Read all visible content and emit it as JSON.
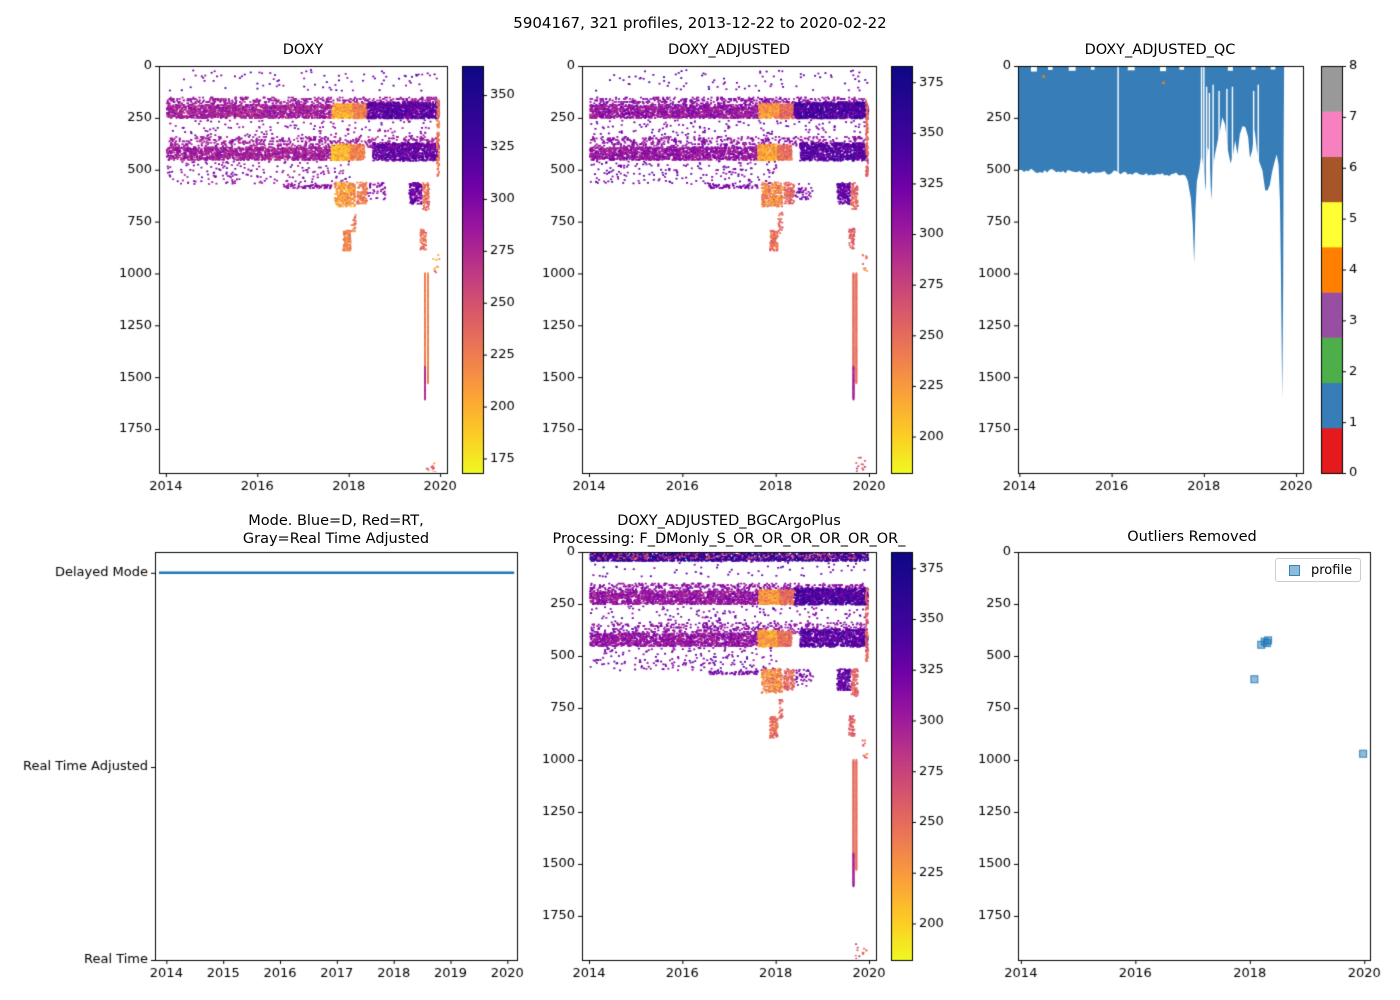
{
  "chart_data": {
    "type": "scatter",
    "suptitle": "5904167, 321 profiles, 2013-12-22 to 2020-02-22",
    "plasma_r_stops": [
      [
        0,
        "#f0f921"
      ],
      [
        0.1,
        "#fdca26"
      ],
      [
        0.2,
        "#fb9f3a"
      ],
      [
        0.3,
        "#ed7953"
      ],
      [
        0.4,
        "#d8576b"
      ],
      [
        0.5,
        "#bd3786"
      ],
      [
        0.6,
        "#9c179e"
      ],
      [
        0.7,
        "#7201a8"
      ],
      [
        0.8,
        "#46039f"
      ],
      [
        1,
        "#0d0887"
      ]
    ],
    "qc_palette": [
      "#e41a1c",
      "#377eb8",
      "#4daf4a",
      "#984ea3",
      "#ff7f00",
      "#ffff33",
      "#a65628",
      "#f781bf",
      "#999999"
    ],
    "shared_groups": {
      "doxy_pattern": [
        {
          "s": "cloud",
          "x": [
            2014.0,
            2019.95
          ],
          "d": [
            15,
            115
          ],
          "n": 85,
          "v": [
            285,
            330
          ]
        },
        {
          "s": "band",
          "x": [
            2014.0,
            2019.9
          ],
          "d": [
            148,
            188
          ],
          "n": 560,
          "v": [
            272,
            300
          ],
          "q": 7
        },
        {
          "s": "band",
          "x": [
            2014.0,
            2017.62
          ],
          "d": [
            186,
            248
          ],
          "n": 1500,
          "v": [
            262,
            300
          ],
          "q": 4
        },
        {
          "s": "band",
          "x": [
            2017.62,
            2018.07
          ],
          "d": [
            178,
            248
          ],
          "n": 420,
          "v": [
            178,
            226
          ],
          "q": 4
        },
        {
          "s": "band",
          "x": [
            2018.07,
            2018.38
          ],
          "d": [
            180,
            248
          ],
          "n": 260,
          "v": [
            205,
            245
          ],
          "q": 4
        },
        {
          "s": "band",
          "x": [
            2018.38,
            2019.96
          ],
          "d": [
            172,
            250
          ],
          "n": 1150,
          "v": [
            290,
            340
          ],
          "q": 4
        },
        {
          "s": "cloud",
          "x": [
            2014.0,
            2019.9
          ],
          "d": [
            255,
            335
          ],
          "n": 130,
          "v": [
            280,
            315
          ]
        },
        {
          "s": "band",
          "x": [
            2014.0,
            2019.9
          ],
          "d": [
            338,
            388
          ],
          "n": 500,
          "v": [
            272,
            300
          ],
          "q": 7
        },
        {
          "s": "band",
          "x": [
            2014.0,
            2017.6
          ],
          "d": [
            388,
            450
          ],
          "n": 1400,
          "v": [
            264,
            300
          ],
          "q": 4
        },
        {
          "s": "band",
          "x": [
            2017.6,
            2018.02
          ],
          "d": [
            374,
            452
          ],
          "n": 380,
          "v": [
            175,
            218
          ],
          "q": 4
        },
        {
          "s": "band",
          "x": [
            2018.02,
            2018.32
          ],
          "d": [
            376,
            450
          ],
          "n": 230,
          "v": [
            204,
            242
          ],
          "q": 4
        },
        {
          "s": "band",
          "x": [
            2018.5,
            2019.95
          ],
          "d": [
            368,
            452
          ],
          "n": 880,
          "v": [
            288,
            332
          ],
          "q": 4
        },
        {
          "s": "cloud",
          "x": [
            2014.0,
            2018.0
          ],
          "d": [
            455,
            565
          ],
          "n": 190,
          "v": [
            278,
            316
          ]
        },
        {
          "s": "cloud",
          "x": [
            2016.55,
            2017.6
          ],
          "d": [
            568,
            586
          ],
          "n": 70,
          "v": [
            282,
            306
          ]
        },
        {
          "s": "band",
          "x": [
            2017.68,
            2018.12
          ],
          "d": [
            558,
            672
          ],
          "n": 300,
          "v": [
            186,
            238
          ],
          "q": 5
        },
        {
          "s": "band",
          "x": [
            2018.16,
            2018.38
          ],
          "d": [
            558,
            660
          ],
          "n": 110,
          "v": [
            212,
            245
          ],
          "q": 5
        },
        {
          "s": "cloud",
          "x": [
            2018.4,
            2018.78
          ],
          "d": [
            560,
            640
          ],
          "n": 40,
          "v": [
            278,
            310
          ]
        },
        {
          "s": "band",
          "x": [
            2019.3,
            2019.58
          ],
          "d": [
            560,
            662
          ],
          "n": 170,
          "v": [
            286,
            325
          ],
          "q": 5
        },
        {
          "s": "band",
          "x": [
            2019.6,
            2019.74
          ],
          "d": [
            560,
            690
          ],
          "n": 85,
          "v": [
            214,
            248
          ],
          "q": 5
        },
        {
          "s": "band",
          "x": [
            2017.86,
            2018.02
          ],
          "d": [
            790,
            888
          ],
          "n": 115,
          "v": [
            206,
            240
          ],
          "q": 5
        },
        {
          "s": "cloud",
          "x": [
            2018.04,
            2018.13
          ],
          "d": [
            700,
            805
          ],
          "n": 25,
          "v": [
            214,
            244
          ]
        },
        {
          "s": "band",
          "x": [
            2019.55,
            2019.67
          ],
          "d": [
            780,
            882
          ],
          "n": 55,
          "v": [
            216,
            252
          ],
          "q": 5
        },
        {
          "s": "column",
          "x": [
            2019.91,
            2019.96
          ],
          "d": [
            160,
            525
          ],
          "n": 85,
          "v": [
            214,
            244
          ]
        },
        {
          "s": "vline",
          "x": [
            2019.645,
            2019.658
          ],
          "d": [
            995,
            1455
          ],
          "n": 170,
          "v": [
            217,
            234
          ]
        },
        {
          "s": "vline",
          "x": [
            2019.708,
            2019.72
          ],
          "d": [
            995,
            1522
          ],
          "n": 180,
          "v": [
            214,
            232
          ]
        },
        {
          "s": "vline",
          "x": [
            2019.645,
            2019.658
          ],
          "d": [
            1445,
            1600
          ],
          "n": 60,
          "v": [
            260,
            282
          ]
        },
        {
          "s": "cloud",
          "x": [
            2019.82,
            2019.96
          ],
          "d": [
            900,
            992
          ],
          "n": 10,
          "v": [
            198,
            252
          ]
        },
        {
          "s": "cloud",
          "x": [
            2019.68,
            2019.93
          ],
          "d": [
            1880,
            1958
          ],
          "n": 12,
          "v": [
            214,
            262
          ]
        }
      ],
      "bgc_surface": [
        {
          "s": "band",
          "x": [
            2014.0,
            2019.96
          ],
          "d": [
            2,
            40
          ],
          "n": 1700,
          "v": [
            295,
            358
          ],
          "q": 4
        },
        {
          "s": "band",
          "x": [
            2014.02,
            2019.9
          ],
          "d": [
            2,
            32
          ],
          "n": 130,
          "v": [
            232,
            258
          ],
          "q": 4
        }
      ]
    },
    "panels": [
      {
        "id": "doxy",
        "type": "scatter",
        "title": "DOXY",
        "x_range": [
          2013.85,
          2020.15
        ],
        "depth_range": [
          0,
          1962
        ],
        "x_ticks": [
          2014,
          2016,
          2018,
          2020
        ],
        "y_ticks": [
          0,
          250,
          500,
          750,
          1000,
          1250,
          1500,
          1750
        ],
        "colorbar": {
          "vmin": 168,
          "vmax": 364,
          "ticks": [
            175,
            200,
            225,
            250,
            275,
            300,
            325,
            350
          ]
        },
        "groups_ref": "doxy_pattern",
        "value_offset": 0
      },
      {
        "id": "doxy_adjusted",
        "type": "scatter",
        "title": "DOXY_ADJUSTED",
        "x_range": [
          2013.85,
          2020.15
        ],
        "depth_range": [
          0,
          1962
        ],
        "x_ticks": [
          2014,
          2016,
          2018,
          2020
        ],
        "y_ticks": [
          0,
          250,
          500,
          750,
          1000,
          1250,
          1500,
          1750
        ],
        "colorbar": {
          "vmin": 182,
          "vmax": 383,
          "ticks": [
            200,
            225,
            250,
            275,
            300,
            325,
            350,
            375
          ]
        },
        "groups_ref": "doxy_pattern",
        "value_offset": 25
      },
      {
        "id": "doxy_adjusted_qc",
        "type": "qc",
        "title": "DOXY_ADJUSTED_QC",
        "x_range": [
          2013.97,
          2020.15
        ],
        "depth_range": [
          0,
          1962
        ],
        "x_ticks": [
          2014,
          2016,
          2018,
          2020
        ],
        "y_ticks": [
          0,
          250,
          500,
          750,
          1000,
          1250,
          1500,
          1750
        ],
        "colorbar": {
          "ticks": [
            0,
            1,
            2,
            3,
            4,
            5,
            6,
            7,
            8
          ]
        },
        "fill_color_index": 1,
        "profile": [
          [
            2013.92,
            505
          ],
          [
            2014.1,
            508
          ],
          [
            2014.3,
            502
          ],
          [
            2014.5,
            512
          ],
          [
            2014.7,
            505
          ],
          [
            2014.9,
            512
          ],
          [
            2015.1,
            508
          ],
          [
            2015.3,
            515
          ],
          [
            2015.5,
            512
          ],
          [
            2015.7,
            518
          ],
          [
            2015.9,
            515
          ],
          [
            2016.05,
            512
          ],
          [
            2016.2,
            515
          ],
          [
            2016.4,
            518
          ],
          [
            2016.6,
            515
          ],
          [
            2016.8,
            522
          ],
          [
            2017.0,
            518
          ],
          [
            2017.2,
            525
          ],
          [
            2017.4,
            522
          ],
          [
            2017.55,
            528
          ],
          [
            2017.65,
            535
          ],
          [
            2017.72,
            620
          ],
          [
            2017.76,
            780
          ],
          [
            2017.79,
            930
          ],
          [
            2017.82,
            700
          ],
          [
            2017.85,
            560
          ],
          [
            2017.9,
            500
          ],
          [
            2017.95,
            440
          ],
          [
            2018.0,
            520
          ],
          [
            2018.04,
            610
          ],
          [
            2018.08,
            370
          ],
          [
            2018.12,
            430
          ],
          [
            2018.16,
            640
          ],
          [
            2018.2,
            460
          ],
          [
            2018.25,
            410
          ],
          [
            2018.3,
            370
          ],
          [
            2018.35,
            335
          ],
          [
            2018.4,
            268
          ],
          [
            2018.46,
            295
          ],
          [
            2018.52,
            390
          ],
          [
            2018.58,
            465
          ],
          [
            2018.63,
            430
          ],
          [
            2018.68,
            375
          ],
          [
            2018.73,
            425
          ],
          [
            2018.78,
            345
          ],
          [
            2018.84,
            305
          ],
          [
            2018.9,
            282
          ],
          [
            2018.96,
            355
          ],
          [
            2019.0,
            430
          ],
          [
            2019.05,
            392
          ],
          [
            2019.1,
            315
          ],
          [
            2019.15,
            385
          ],
          [
            2019.2,
            455
          ],
          [
            2019.27,
            520
          ],
          [
            2019.33,
            580
          ],
          [
            2019.38,
            615
          ],
          [
            2019.43,
            575
          ],
          [
            2019.48,
            520
          ],
          [
            2019.53,
            458
          ],
          [
            2019.58,
            415
          ],
          [
            2019.62,
            478
          ],
          [
            2019.65,
            640
          ],
          [
            2019.67,
            980
          ],
          [
            2019.69,
            1420
          ],
          [
            2019.7,
            1600
          ],
          [
            2019.71,
            1350
          ],
          [
            2019.72,
            1080
          ],
          [
            2019.73,
            420
          ],
          [
            2019.74,
            40
          ]
        ],
        "gaps": [
          [
            2016.14,
            0
          ],
          [
            2017.95,
            0
          ],
          [
            2018.0,
            0
          ],
          [
            2018.06,
            100
          ],
          [
            2018.12,
            130
          ],
          [
            2018.2,
            90
          ],
          [
            2018.33,
            120
          ],
          [
            2018.5,
            110
          ],
          [
            2018.62,
            100
          ],
          [
            2019.08,
            120
          ],
          [
            2019.18,
            90
          ]
        ],
        "notches": [
          [
            2014.25,
            2014.38,
            22
          ],
          [
            2014.62,
            2014.72,
            14
          ],
          [
            2015.07,
            2015.22,
            18
          ],
          [
            2015.55,
            2015.63,
            13
          ],
          [
            2016.35,
            2016.5,
            16
          ],
          [
            2017.05,
            2017.18,
            20
          ],
          [
            2017.47,
            2017.57,
            13
          ],
          [
            2018.52,
            2018.63,
            18
          ],
          [
            2019.03,
            2019.12,
            13
          ],
          [
            2019.45,
            2019.55,
            12
          ]
        ],
        "specks": [
          [
            2014.5,
            45
          ],
          [
            2017.1,
            75
          ]
        ]
      },
      {
        "id": "mode",
        "type": "mode",
        "title": "Mode. Blue=D, Red=RT,\nGray=Real Time Adjusted",
        "x_range": [
          2013.8,
          2020.17
        ],
        "x_ticks": [
          2014,
          2015,
          2016,
          2017,
          2018,
          2019,
          2020
        ],
        "categories": [
          "Delayed Mode",
          "Real Time Adjusted",
          "Real Time"
        ],
        "category_pos": [
          0.051,
          0.527,
          1.0
        ],
        "line": {
          "category_index": 0,
          "x": [
            2013.87,
            2020.12
          ],
          "color": "#1f77b4"
        }
      },
      {
        "id": "doxy_adjusted_bgcargoplus",
        "type": "scatter",
        "title": "DOXY_ADJUSTED_BGCArgoPlus\nProcessing: F_DMonly_S_OR_OR_OR_OR_OR_OR_",
        "x_range": [
          2013.85,
          2020.15
        ],
        "depth_range": [
          0,
          1962
        ],
        "x_ticks": [
          2014,
          2016,
          2018,
          2020
        ],
        "y_ticks": [
          0,
          250,
          500,
          750,
          1000,
          1250,
          1500,
          1750
        ],
        "colorbar": {
          "vmin": 182,
          "vmax": 383,
          "ticks": [
            200,
            225,
            250,
            275,
            300,
            325,
            350,
            375
          ]
        },
        "groups_ref": "doxy_pattern",
        "extra_groups_ref": "bgc_surface",
        "value_offset": 25
      },
      {
        "id": "outliers_removed",
        "type": "outliers",
        "title": "Outliers Removed",
        "x_range": [
          2013.95,
          2020.1
        ],
        "depth_range": [
          0,
          1962
        ],
        "x_ticks": [
          2014,
          2016,
          2018,
          2020
        ],
        "y_ticks": [
          0,
          250,
          500,
          750,
          1000,
          1250,
          1500,
          1750
        ],
        "legend_label": "profile",
        "marker_color": "#1f77b4",
        "points": [
          [
            2018.08,
            612
          ],
          [
            2018.2,
            446
          ],
          [
            2018.26,
            431
          ],
          [
            2018.3,
            438
          ],
          [
            2018.32,
            425
          ],
          [
            2019.98,
            970
          ]
        ]
      }
    ]
  }
}
